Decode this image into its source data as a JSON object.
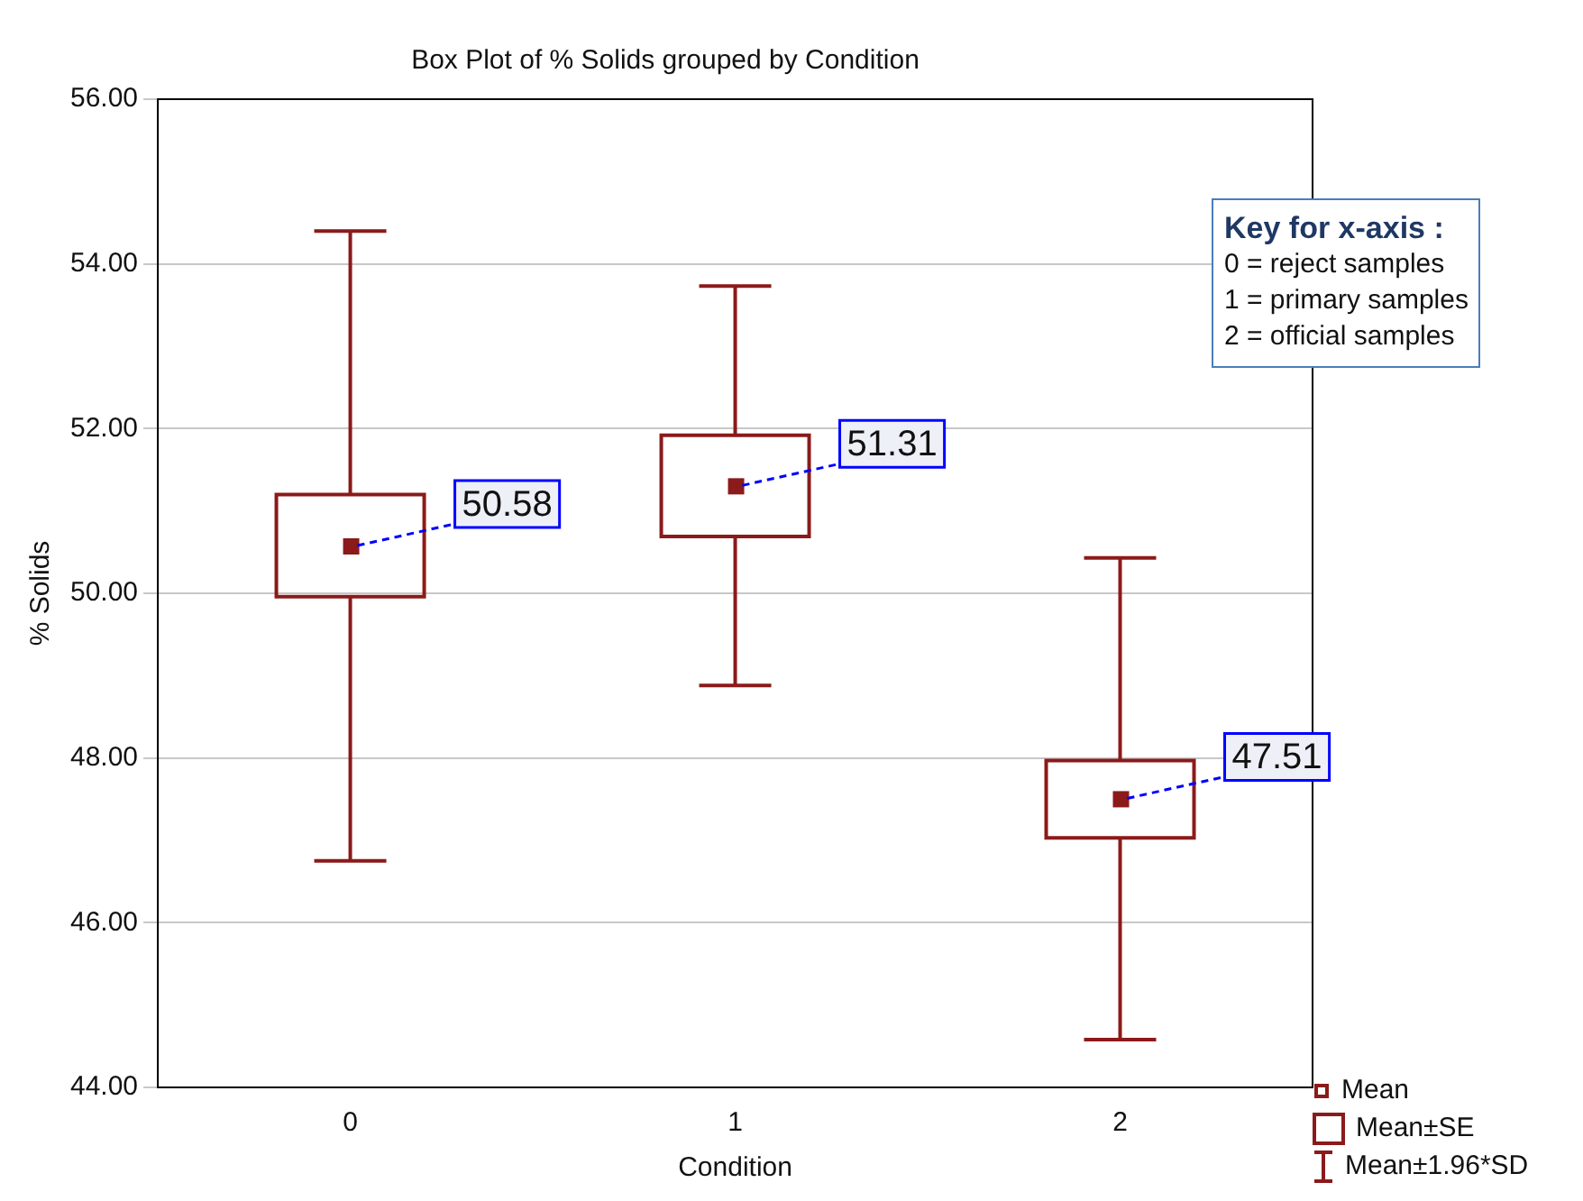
{
  "chart_data": {
    "type": "box",
    "title": "Box Plot of % Solids grouped by Condition",
    "xlabel": "Condition",
    "ylabel": "% Solids",
    "categories": [
      "0",
      "1",
      "2"
    ],
    "boxes": [
      {
        "low": 46.75,
        "q1": 49.96,
        "q3": 51.2,
        "high": 54.4,
        "mean": 50.58
      },
      {
        "low": 48.88,
        "q1": 50.69,
        "q3": 51.92,
        "high": 53.73,
        "mean": 51.31
      },
      {
        "low": 44.58,
        "q1": 47.03,
        "q3": 47.97,
        "high": 50.43,
        "mean": 47.51
      }
    ],
    "color": "#8b1a1a",
    "ylim": [
      44,
      56
    ],
    "yticks": [
      {
        "value": 44,
        "label": "44.00"
      },
      {
        "value": 46,
        "label": "46.00"
      },
      {
        "value": 48,
        "label": "48.00"
      },
      {
        "value": 50,
        "label": "50.00"
      },
      {
        "value": 52,
        "label": "52.00"
      },
      {
        "value": 54,
        "label": "54.00"
      },
      {
        "value": 56,
        "label": "56.00"
      }
    ],
    "grid": "y",
    "annotations": [
      "Key for x-axis :",
      "0 = reject samples",
      "1 = primary samples",
      "2 = official samples",
      "Mean",
      "Mean±SE",
      "Mean±1.96*SD",
      "50.58",
      "51.31",
      "47.51"
    ]
  }
}
